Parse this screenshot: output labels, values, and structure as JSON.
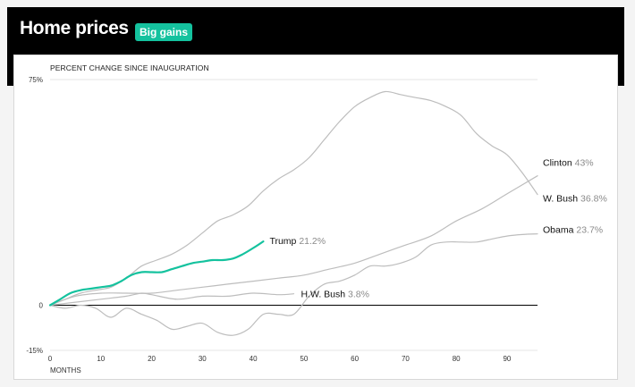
{
  "header": {
    "title": "Home prices",
    "badge": "Big gains"
  },
  "colors": {
    "header_bg": "#000000",
    "accent": "#14c29e",
    "series_gray": "#bdbdbd",
    "zero_line": "#000000"
  },
  "chart_data": {
    "type": "line",
    "title": "",
    "subtitle": "PERCENT CHANGE SINCE INAUGURATION",
    "xlabel": "MONTHS",
    "ylabel": "",
    "xlim": [
      0,
      96
    ],
    "ylim": [
      -15,
      75
    ],
    "x_ticks": [
      0,
      10,
      20,
      30,
      40,
      50,
      60,
      70,
      80,
      90
    ],
    "y_ticks": [
      {
        "value": 75,
        "label": "75%"
      },
      {
        "value": 0,
        "label": "0"
      },
      {
        "value": -15,
        "label": "-15%"
      }
    ],
    "grid": "horizontal",
    "series": [
      {
        "name": "W. Bush",
        "value_label": "36.8%",
        "color": "#bdbdbd",
        "highlight": false,
        "points": [
          [
            0,
            0
          ],
          [
            3,
            2
          ],
          [
            6,
            4
          ],
          [
            9,
            5
          ],
          [
            12,
            6
          ],
          [
            15,
            9
          ],
          [
            18,
            13
          ],
          [
            21,
            15
          ],
          [
            24,
            17
          ],
          [
            27,
            20
          ],
          [
            30,
            24
          ],
          [
            33,
            28
          ],
          [
            36,
            30
          ],
          [
            39,
            33
          ],
          [
            42,
            38
          ],
          [
            45,
            42
          ],
          [
            48,
            45
          ],
          [
            51,
            49
          ],
          [
            54,
            55
          ],
          [
            57,
            61
          ],
          [
            60,
            66
          ],
          [
            63,
            69
          ],
          [
            66,
            71
          ],
          [
            69,
            70
          ],
          [
            72,
            69
          ],
          [
            75,
            68
          ],
          [
            78,
            66
          ],
          [
            81,
            63
          ],
          [
            84,
            57
          ],
          [
            87,
            53
          ],
          [
            90,
            50
          ],
          [
            93,
            44
          ],
          [
            96,
            36.8
          ]
        ]
      },
      {
        "name": "Clinton",
        "value_label": "43%",
        "color": "#bdbdbd",
        "highlight": false,
        "points": [
          [
            0,
            0
          ],
          [
            5,
            3
          ],
          [
            10,
            4
          ],
          [
            15,
            4
          ],
          [
            20,
            4
          ],
          [
            25,
            5
          ],
          [
            30,
            6
          ],
          [
            35,
            7
          ],
          [
            40,
            8
          ],
          [
            45,
            9
          ],
          [
            50,
            10
          ],
          [
            55,
            12
          ],
          [
            60,
            14
          ],
          [
            65,
            17
          ],
          [
            70,
            20
          ],
          [
            75,
            23
          ],
          [
            80,
            28
          ],
          [
            85,
            32
          ],
          [
            90,
            37
          ],
          [
            96,
            43
          ]
        ]
      },
      {
        "name": "Obama",
        "value_label": "23.7%",
        "color": "#bdbdbd",
        "highlight": false,
        "points": [
          [
            0,
            0
          ],
          [
            3,
            -1
          ],
          [
            6,
            0
          ],
          [
            9,
            -1
          ],
          [
            12,
            -4
          ],
          [
            15,
            -1
          ],
          [
            18,
            -3
          ],
          [
            21,
            -5
          ],
          [
            24,
            -8
          ],
          [
            27,
            -7
          ],
          [
            30,
            -6
          ],
          [
            33,
            -9
          ],
          [
            36,
            -10
          ],
          [
            39,
            -8
          ],
          [
            42,
            -3
          ],
          [
            45,
            -3
          ],
          [
            48,
            -3
          ],
          [
            51,
            3
          ],
          [
            54,
            7
          ],
          [
            57,
            8
          ],
          [
            60,
            10
          ],
          [
            63,
            13
          ],
          [
            66,
            13
          ],
          [
            69,
            14
          ],
          [
            72,
            16
          ],
          [
            75,
            20
          ],
          [
            78,
            21
          ],
          [
            81,
            21
          ],
          [
            84,
            21
          ],
          [
            87,
            22
          ],
          [
            90,
            23
          ],
          [
            93,
            23.5
          ],
          [
            96,
            23.7
          ]
        ]
      },
      {
        "name": "H.W. Bush",
        "value_label": "3.8%",
        "color": "#bdbdbd",
        "highlight": false,
        "points": [
          [
            0,
            0
          ],
          [
            5,
            1
          ],
          [
            10,
            2
          ],
          [
            15,
            3
          ],
          [
            18,
            4
          ],
          [
            20,
            3.5
          ],
          [
            25,
            2
          ],
          [
            30,
            3
          ],
          [
            35,
            3
          ],
          [
            40,
            4
          ],
          [
            45,
            3.5
          ],
          [
            48,
            3.8
          ]
        ]
      },
      {
        "name": "Trump",
        "value_label": "21.2%",
        "color": "#14c29e",
        "highlight": true,
        "points": [
          [
            0,
            0
          ],
          [
            2,
            2
          ],
          [
            4,
            4
          ],
          [
            6,
            5
          ],
          [
            8,
            5.5
          ],
          [
            10,
            6
          ],
          [
            12,
            6.5
          ],
          [
            14,
            8
          ],
          [
            16,
            10
          ],
          [
            18,
            11
          ],
          [
            20,
            11
          ],
          [
            22,
            11
          ],
          [
            24,
            12
          ],
          [
            26,
            13
          ],
          [
            28,
            14
          ],
          [
            30,
            14.5
          ],
          [
            32,
            15
          ],
          [
            34,
            15
          ],
          [
            36,
            15.5
          ],
          [
            38,
            17
          ],
          [
            40,
            19
          ],
          [
            42,
            21.2
          ]
        ]
      }
    ]
  }
}
